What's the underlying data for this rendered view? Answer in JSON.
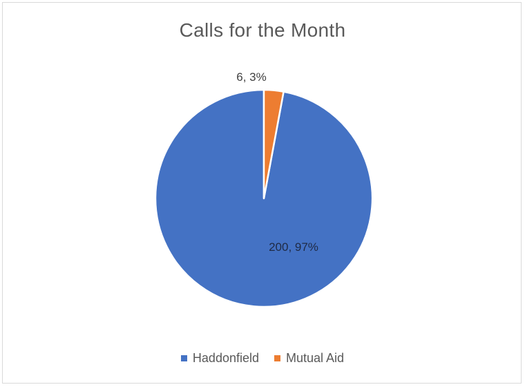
{
  "chart_data": {
    "type": "pie",
    "title": "Calls for the Month",
    "categories": [
      "Haddonfield",
      "Mutual Aid"
    ],
    "values": [
      200,
      6
    ],
    "percentages": [
      97,
      3
    ],
    "data_labels": [
      "200, 97%",
      "6, 3%"
    ],
    "colors": [
      "#4472C4",
      "#ED7D31"
    ],
    "legend_position": "bottom"
  }
}
